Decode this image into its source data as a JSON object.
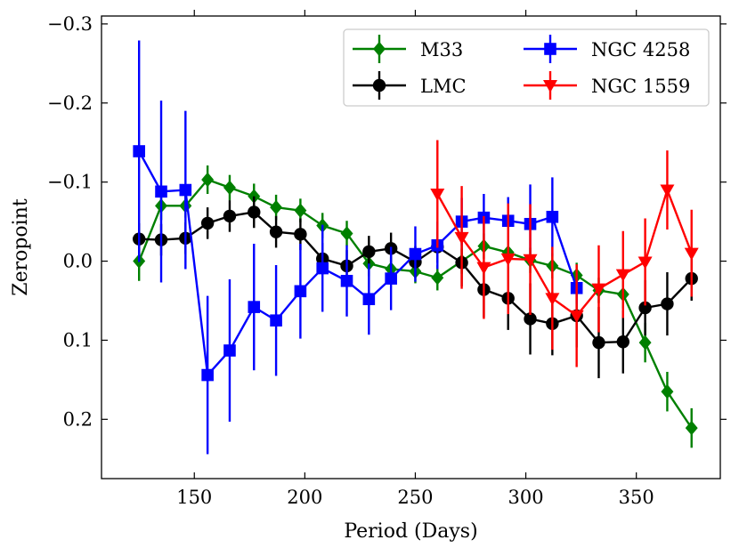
{
  "chart_data": {
    "type": "line",
    "xlabel": "Period (Days)",
    "ylabel": "Zeropoint",
    "xlim": [
      108,
      388
    ],
    "ylim": [
      0.275,
      -0.31
    ],
    "y_inverted": true,
    "xticks": [
      150,
      200,
      250,
      300,
      350
    ],
    "yticks": [
      -0.3,
      -0.2,
      -0.1,
      0.0,
      0.1,
      0.2
    ],
    "xtick_labels": [
      "150",
      "200",
      "250",
      "300",
      "350"
    ],
    "ytick_labels": [
      "−0.3",
      "−0.2",
      "−0.1",
      "0.0",
      "0.1",
      "0.2"
    ],
    "grid": false,
    "legend_position": "top-right",
    "series": [
      {
        "name": "M33",
        "color": "#008000",
        "marker": "diamond",
        "x": [
          125,
          135,
          146,
          156,
          166,
          177,
          187,
          198,
          208,
          219,
          229,
          239,
          250,
          260,
          271,
          281,
          292,
          302,
          312,
          323,
          333,
          344,
          354,
          364,
          375
        ],
        "y": [
          0.0,
          -0.07,
          -0.07,
          -0.103,
          -0.093,
          -0.082,
          -0.068,
          -0.064,
          -0.045,
          -0.035,
          0.003,
          0.01,
          0.013,
          0.021,
          0.0,
          -0.019,
          -0.011,
          -0.001,
          0.006,
          0.018,
          0.037,
          0.042,
          0.103,
          0.165,
          0.211
        ],
        "err": [
          0.025,
          0.018,
          0.015,
          0.018,
          0.016,
          0.016,
          0.016,
          0.015,
          0.016,
          0.016,
          0.016,
          0.015,
          0.015,
          0.016,
          0.016,
          0.016,
          0.016,
          0.016,
          0.016,
          0.016,
          0.016,
          0.018,
          0.025,
          0.025,
          0.025
        ]
      },
      {
        "name": "LMC",
        "color": "#000000",
        "marker": "circle",
        "x": [
          125,
          135,
          146,
          156,
          166,
          177,
          187,
          198,
          208,
          219,
          229,
          239,
          250,
          260,
          271,
          281,
          292,
          302,
          312,
          323,
          333,
          344,
          354,
          364,
          375
        ],
        "y": [
          -0.028,
          -0.027,
          -0.029,
          -0.048,
          -0.057,
          -0.062,
          -0.037,
          -0.034,
          -0.003,
          0.006,
          -0.012,
          -0.016,
          0.001,
          -0.018,
          0.002,
          0.036,
          0.047,
          0.073,
          0.079,
          0.069,
          0.103,
          0.102,
          0.059,
          0.054,
          0.022
        ],
        "err": [
          0.02,
          0.02,
          0.02,
          0.02,
          0.02,
          0.02,
          0.02,
          0.02,
          0.02,
          0.02,
          0.02,
          0.02,
          0.02,
          0.02,
          0.03,
          0.035,
          0.04,
          0.045,
          0.04,
          0.04,
          0.045,
          0.04,
          0.035,
          0.04,
          0.028
        ]
      },
      {
        "name": "NGC 4258",
        "color": "#0000ff",
        "marker": "square",
        "x": [
          125,
          135,
          146,
          156,
          166,
          177,
          187,
          198,
          208,
          219,
          229,
          239,
          250,
          260,
          271,
          281,
          292,
          302,
          312,
          323
        ],
        "y": [
          -0.139,
          -0.088,
          -0.09,
          0.144,
          0.113,
          0.058,
          0.075,
          0.038,
          0.009,
          0.025,
          0.048,
          0.022,
          -0.009,
          -0.02,
          -0.05,
          -0.055,
          -0.051,
          -0.047,
          -0.056,
          0.034
        ],
        "err": [
          0.14,
          0.115,
          0.1,
          0.1,
          0.09,
          0.08,
          0.07,
          0.06,
          0.055,
          0.045,
          0.045,
          0.04,
          0.035,
          0.03,
          0.03,
          0.03,
          0.03,
          0.05,
          0.05,
          0.02
        ]
      },
      {
        "name": "NGC 1559",
        "color": "#ff0000",
        "marker": "triangle-down",
        "x": [
          260,
          271,
          281,
          292,
          302,
          312,
          323,
          333,
          344,
          354,
          364,
          375
        ],
        "y": [
          -0.085,
          -0.03,
          0.008,
          -0.003,
          -0.002,
          0.047,
          0.069,
          0.035,
          0.017,
          0.001,
          -0.09,
          -0.01
        ],
        "err": [
          0.068,
          0.065,
          0.065,
          0.07,
          0.07,
          0.065,
          0.065,
          0.055,
          0.055,
          0.055,
          0.05,
          0.055
        ]
      }
    ]
  }
}
